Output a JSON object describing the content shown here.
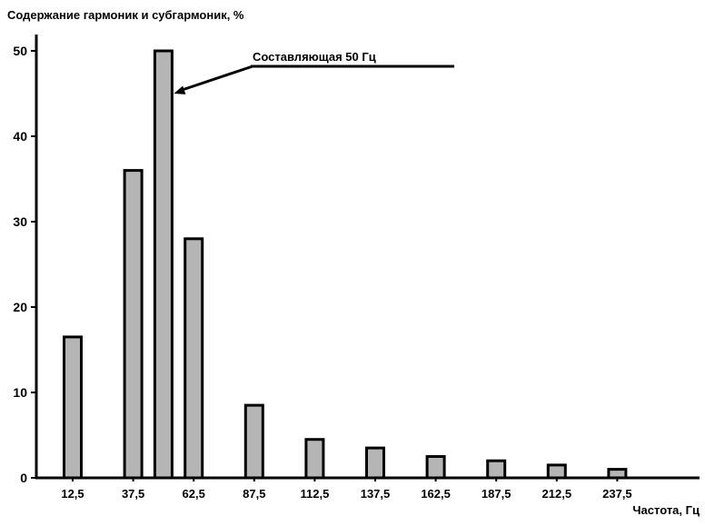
{
  "chart_data": {
    "type": "bar",
    "title": "Содержание гармоник и субгармоник, %",
    "xlabel": "Частота, Гц",
    "ylabel": "",
    "ylim": [
      0,
      52
    ],
    "yticks": [
      0,
      10,
      20,
      30,
      40,
      50
    ],
    "x_tick_labels": [
      "12,5",
      "37,5",
      "62,5",
      "87,5",
      "112,5",
      "137,5",
      "162,5",
      "187,5",
      "212,5",
      "237,5"
    ],
    "x": [
      12.5,
      37.5,
      50,
      62.5,
      87.5,
      112.5,
      137.5,
      162.5,
      187.5,
      212.5,
      237.5
    ],
    "values": [
      16.5,
      36,
      50,
      28,
      8.5,
      4.5,
      3.5,
      2.5,
      2,
      1.5,
      1
    ],
    "annotation": {
      "text": "Составляющая 50 Гц",
      "target_x": 50,
      "target_y": 45
    },
    "grid": false,
    "bar_color": "#b5b5b5",
    "bar_edge_color": "#000000"
  }
}
